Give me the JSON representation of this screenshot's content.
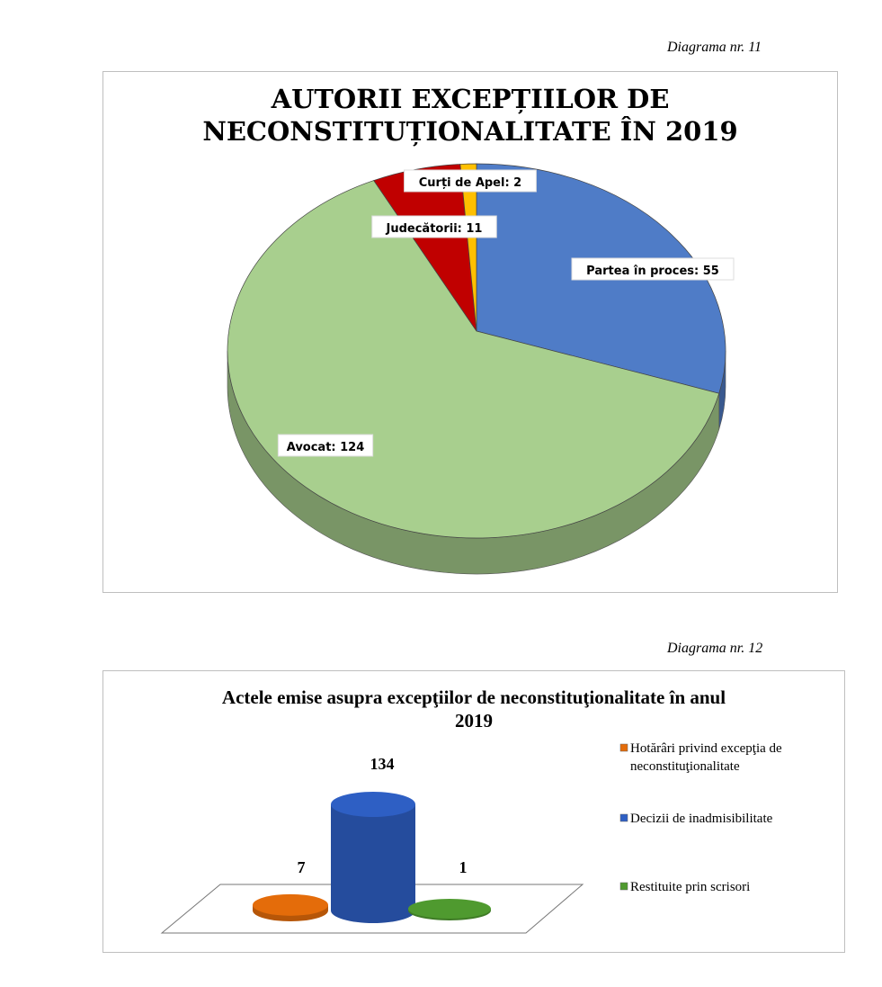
{
  "captions": {
    "d11": "Diagrama nr. 11",
    "d12": "Diagrama nr. 12"
  },
  "chart_data": [
    {
      "type": "pie",
      "title": "AUTORII EXCEPȚIILOR DE NECONSTITUȚIONALITATE ÎN 2019",
      "title_lines": [
        "AUTORII EXCEPȚIILOR DE",
        "NECONSTITUȚIONALITATE ÎN 2019"
      ],
      "slices": [
        {
          "label": "Partea în proces: 55",
          "name": "Partea în proces",
          "value": 55,
          "color": "#4f7cc7"
        },
        {
          "label": "Avocat: 124",
          "name": "Avocat",
          "value": 124,
          "color": "#a8cf8e"
        },
        {
          "label": "Judecătorii: 11",
          "name": "Judecătorii",
          "value": 11,
          "color": "#c00000"
        },
        {
          "label": "Curți de Apel: 2",
          "name": "Curți de Apel",
          "value": 2,
          "color": "#ffc000"
        }
      ]
    },
    {
      "type": "bar",
      "title": "Actele emise asupra excepţiilor de neconstituţionalitate în anul 2019",
      "title_lines": [
        "Actele emise asupra excepţiilor de neconstituţionalitate în anul",
        "2019"
      ],
      "legend_placement": "right",
      "series": [
        {
          "name": "Hotărâri privind excepţia de neconstituţionalitate",
          "legend_lines": [
            "Hotărâri privind excepţia de",
            "neconstituţionalitate"
          ],
          "value": 7,
          "label": "7",
          "color": "#e46c0a"
        },
        {
          "name": "Decizii de inadmisibilitate",
          "legend_lines": [
            "Decizii de inadmisibilitate"
          ],
          "value": 134,
          "label": "134",
          "color": "#2e5fc4"
        },
        {
          "name": "Restituite prin scrisori",
          "legend_lines": [
            "Restituite prin scrisori"
          ],
          "value": 1,
          "label": "1",
          "color": "#4f9a2f"
        }
      ]
    }
  ]
}
